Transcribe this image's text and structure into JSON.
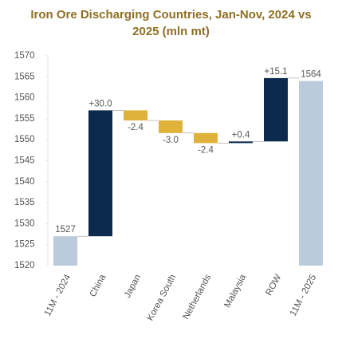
{
  "chart_data": {
    "type": "waterfall",
    "title": "Iron Ore Discharging Countries, Jan-Nov, 2024 vs 2025 (mln mt)",
    "categories": [
      "11M - 2024",
      "China",
      "Japan",
      "Korea South",
      "Netherlands",
      "Malaysia",
      "ROW",
      "11M - 2025"
    ],
    "values": [
      1527,
      30.0,
      -2.4,
      -3.0,
      -2.4,
      0.4,
      15.1,
      1564
    ],
    "value_labels": [
      "1527",
      "+30.0",
      "-2.4",
      "-3.0",
      "-2.4",
      "+0.4",
      "+15.1",
      "1564"
    ],
    "total_color": "#bccbdb",
    "increase_color": "#0c2a4d",
    "decrease_color": "#dfb23a",
    "ylim": [
      1520,
      1570
    ],
    "yticks": [
      1520,
      1525,
      1530,
      1535,
      1540,
      1545,
      1550,
      1555,
      1560,
      1565,
      1570
    ],
    "grid": false
  }
}
